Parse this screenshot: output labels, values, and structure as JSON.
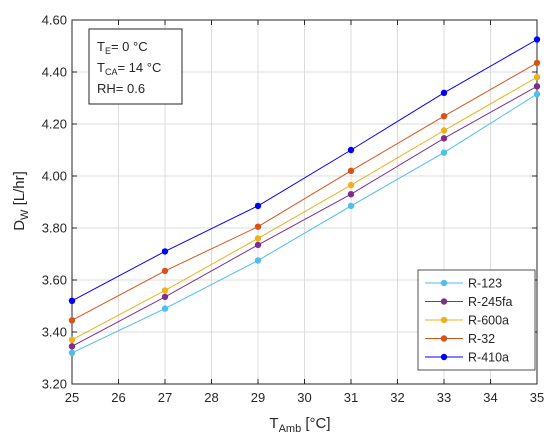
{
  "chart_data": {
    "type": "line",
    "x": [
      25,
      27,
      29,
      31,
      33,
      35
    ],
    "series": [
      {
        "name": "R-123",
        "color": "#4DBEEE",
        "values": [
          3.32,
          3.49,
          3.675,
          3.885,
          4.09,
          4.315
        ]
      },
      {
        "name": "R-245fa",
        "color": "#7E2F8E",
        "values": [
          3.345,
          3.535,
          3.735,
          3.93,
          4.145,
          4.345
        ]
      },
      {
        "name": "R-600a",
        "color": "#EDB120",
        "values": [
          3.37,
          3.56,
          3.76,
          3.965,
          4.175,
          4.38
        ]
      },
      {
        "name": "R-32",
        "color": "#D95319",
        "values": [
          3.445,
          3.635,
          3.805,
          4.02,
          4.23,
          4.435
        ]
      },
      {
        "name": "R-410a",
        "color": "#0000FF",
        "values": [
          3.52,
          3.71,
          3.885,
          4.1,
          4.32,
          4.525
        ]
      }
    ],
    "xlim": [
      25,
      35
    ],
    "ylim": [
      3.2,
      4.6
    ],
    "xticks": [
      "25",
      "26",
      "27",
      "28",
      "29",
      "30",
      "31",
      "32",
      "33",
      "34",
      "35"
    ],
    "yticks": [
      "3.20",
      "3.40",
      "3.60",
      "3.80",
      "4.00",
      "4.20",
      "4.40",
      "4.60"
    ],
    "xlabel": {
      "main": "T",
      "sub": "Amb",
      "rest": " [°C]"
    },
    "ylabel": {
      "main": "D",
      "sub": "W",
      "rest": " [L/hr]"
    },
    "grid": true,
    "legend_position": "bottom-right",
    "annotation": {
      "line1": {
        "main": "T",
        "sub": "E",
        "rest": "= 0 °C"
      },
      "line2": {
        "main": "T",
        "sub": "CA",
        "rest": "= 14 °C"
      },
      "line3": "RH= 0.6"
    }
  }
}
